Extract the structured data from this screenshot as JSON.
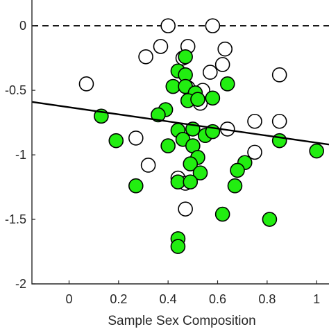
{
  "chart_data": {
    "type": "scatter",
    "title": "",
    "xlabel": "Sample Sex Composition",
    "ylabel": "",
    "xlim": [
      -0.15,
      1.05
    ],
    "ylim": [
      -2.0,
      0.2
    ],
    "x_ticks": [
      0,
      0.2,
      0.4,
      0.6,
      0.8,
      1
    ],
    "x_tick_labels": [
      "0",
      "0.2",
      "0.4",
      "0.6",
      "0.8",
      "1"
    ],
    "y_ticks": [
      0,
      -0.5,
      -1,
      -1.5,
      -2
    ],
    "y_tick_labels": [
      "0",
      "-0.5",
      "-1",
      "-1.5",
      "-2"
    ],
    "grid": false,
    "reference_line": {
      "y": 0,
      "style": "dashed",
      "color": "#000000"
    },
    "fit_line": {
      "x": [
        -0.15,
        1.05
      ],
      "y": [
        -0.59,
        -0.92
      ],
      "color": "#000000"
    },
    "series": [
      {
        "marker": "open-circle",
        "fill": "#ffffff",
        "stroke": "#000000",
        "points": [
          [
            0.4,
            0.0
          ],
          [
            0.58,
            0.0
          ],
          [
            0.37,
            -0.16
          ],
          [
            0.48,
            -0.16
          ],
          [
            0.63,
            -0.18
          ],
          [
            0.31,
            -0.24
          ],
          [
            0.46,
            -0.25
          ],
          [
            0.62,
            -0.3
          ],
          [
            0.57,
            -0.36
          ],
          [
            0.07,
            -0.45
          ],
          [
            0.85,
            -0.38
          ],
          [
            0.48,
            -0.48
          ],
          [
            0.54,
            -0.5
          ],
          [
            0.5,
            -0.55
          ],
          [
            0.53,
            -0.6
          ],
          [
            0.64,
            -0.8
          ],
          [
            0.27,
            -0.87
          ],
          [
            0.75,
            -0.74
          ],
          [
            0.85,
            -0.74
          ],
          [
            0.75,
            -0.98
          ],
          [
            0.32,
            -1.08
          ],
          [
            0.44,
            -1.18
          ],
          [
            0.47,
            -1.22
          ],
          [
            0.47,
            -1.42
          ]
        ]
      },
      {
        "marker": "filled-circle",
        "fill": "#22ee11",
        "stroke": "#000000",
        "points": [
          [
            0.47,
            -0.24
          ],
          [
            0.44,
            -0.35
          ],
          [
            0.47,
            -0.38
          ],
          [
            0.42,
            -0.47
          ],
          [
            0.47,
            -0.47
          ],
          [
            0.64,
            -0.45
          ],
          [
            0.51,
            -0.52
          ],
          [
            0.48,
            -0.58
          ],
          [
            0.52,
            -0.57
          ],
          [
            0.58,
            -0.56
          ],
          [
            0.39,
            -0.65
          ],
          [
            0.36,
            -0.69
          ],
          [
            0.13,
            -0.7
          ],
          [
            0.44,
            -0.81
          ],
          [
            0.5,
            -0.8
          ],
          [
            0.55,
            -0.85
          ],
          [
            0.58,
            -0.82
          ],
          [
            0.19,
            -0.89
          ],
          [
            0.46,
            -0.88
          ],
          [
            0.4,
            -0.93
          ],
          [
            0.5,
            -0.93
          ],
          [
            0.85,
            -0.89
          ],
          [
            1.0,
            -0.97
          ],
          [
            0.52,
            -1.02
          ],
          [
            0.49,
            -1.07
          ],
          [
            0.71,
            -1.06
          ],
          [
            0.68,
            -1.12
          ],
          [
            0.53,
            -1.14
          ],
          [
            0.44,
            -1.21
          ],
          [
            0.49,
            -1.21
          ],
          [
            0.27,
            -1.24
          ],
          [
            0.67,
            -1.24
          ],
          [
            0.62,
            -1.46
          ],
          [
            0.81,
            -1.5
          ],
          [
            0.44,
            -1.65
          ],
          [
            0.44,
            -1.71
          ]
        ]
      }
    ]
  }
}
